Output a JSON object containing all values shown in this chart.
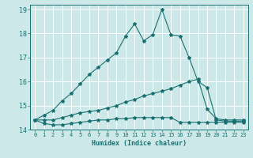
{
  "xlabel": "Humidex (Indice chaleur)",
  "bg_color": "#cce8e8",
  "grid_color": "#ffffff",
  "line_color": "#1a7070",
  "xlim": [
    -0.5,
    23.5
  ],
  "ylim": [
    14.0,
    19.2
  ],
  "xticks": [
    0,
    1,
    2,
    3,
    4,
    5,
    6,
    7,
    8,
    9,
    10,
    11,
    12,
    13,
    14,
    15,
    16,
    17,
    18,
    19,
    20,
    21,
    22,
    23
  ],
  "yticks": [
    14,
    15,
    16,
    17,
    18,
    19
  ],
  "series": [
    {
      "x": [
        0,
        1,
        2,
        3,
        4,
        5,
        6,
        7,
        8,
        9,
        10,
        11,
        12,
        13,
        14,
        15,
        16,
        17,
        18,
        19,
        20,
        21,
        22,
        23
      ],
      "y": [
        14.4,
        14.6,
        14.8,
        15.2,
        15.5,
        15.9,
        16.3,
        16.6,
        16.9,
        17.2,
        17.9,
        18.4,
        17.7,
        17.95,
        19.0,
        17.95,
        17.9,
        17.0,
        16.0,
        15.75,
        14.4,
        14.35,
        14.35,
        14.35
      ]
    },
    {
      "x": [
        0,
        1,
        2,
        3,
        4,
        5,
        6,
        7,
        8,
        9,
        10,
        11,
        12,
        13,
        14,
        15,
        16,
        17,
        18,
        19,
        20,
        21,
        22,
        23
      ],
      "y": [
        14.4,
        14.4,
        14.4,
        14.5,
        14.6,
        14.7,
        14.75,
        14.8,
        14.9,
        15.0,
        15.15,
        15.25,
        15.4,
        15.5,
        15.6,
        15.7,
        15.85,
        16.0,
        16.1,
        14.85,
        14.45,
        14.4,
        14.4,
        14.4
      ]
    },
    {
      "x": [
        0,
        1,
        2,
        3,
        4,
        5,
        6,
        7,
        8,
        9,
        10,
        11,
        12,
        13,
        14,
        15,
        16,
        17,
        18,
        19,
        20,
        21,
        22,
        23
      ],
      "y": [
        14.4,
        14.25,
        14.2,
        14.2,
        14.25,
        14.3,
        14.35,
        14.4,
        14.4,
        14.45,
        14.45,
        14.5,
        14.5,
        14.5,
        14.5,
        14.5,
        14.3,
        14.3,
        14.3,
        14.3,
        14.3,
        14.3,
        14.3,
        14.3
      ]
    }
  ]
}
